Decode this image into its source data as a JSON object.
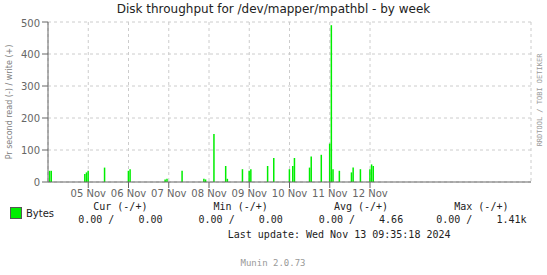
{
  "chart_data": {
    "type": "bar",
    "title": "Disk throughput for /dev/mapper/mpathbl - by week",
    "ylabel": "Pr second read (-) / write (+)",
    "x": [
      1730682000,
      1730685600,
      1730757600,
      1730761200,
      1730764800,
      1730800000,
      1730851200,
      1730854800,
      1730930000,
      1730934000,
      1730966400,
      1731013200,
      1731016800,
      1731034800,
      1731060000,
      1731063600,
      1731096000,
      1731110400,
      1731114000,
      1731150000,
      1731163200,
      1731196800,
      1731204000,
      1731207600,
      1731240000,
      1731243600,
      1731265200,
      1731283200,
      1731286800,
      1731290400,
      1731304000,
      1731330000,
      1731333600,
      1731349200,
      1731369600,
      1731373200,
      1731376800
    ],
    "xlim": [
      1730678400,
      1731715200
    ],
    "xticks": [
      {
        "value": 1730764800,
        "label": "05 Nov"
      },
      {
        "value": 1730851200,
        "label": "06 Nov"
      },
      {
        "value": 1730937600,
        "label": "07 Nov"
      },
      {
        "value": 1731024000,
        "label": "08 Nov"
      },
      {
        "value": 1731110400,
        "label": "09 Nov"
      },
      {
        "value": 1731196800,
        "label": "10 Nov"
      },
      {
        "value": 1731283200,
        "label": "11 Nov"
      },
      {
        "value": 1731369600,
        "label": "12 Nov"
      }
    ],
    "ylim": [
      0,
      500
    ],
    "yticks": [
      0,
      100,
      200,
      300,
      400,
      500
    ],
    "grid": true,
    "series": [
      {
        "name": "Bytes",
        "color": "#00ee00",
        "values": [
          35,
          35,
          25,
          30,
          35,
          45,
          35,
          40,
          8,
          10,
          35,
          10,
          8,
          150,
          50,
          10,
          40,
          35,
          40,
          50,
          75,
          40,
          50,
          75,
          45,
          80,
          85,
          120,
          490,
          40,
          35,
          30,
          45,
          40,
          40,
          55,
          50
        ]
      }
    ],
    "annotations": [
      "Cur (-/+)",
      "Min (-/+)",
      "Avg (-/+)",
      "Max (-/+)",
      "0.00 /    0.00",
      "0.00 /    0.00",
      "0.00 /    4.66",
      "0.00 /    1.41k",
      "Last update: Wed Nov 13 09:35:18 2024",
      "Munin 2.0.73",
      "RRDTOOL / TOBI OETIKER"
    ]
  }
}
